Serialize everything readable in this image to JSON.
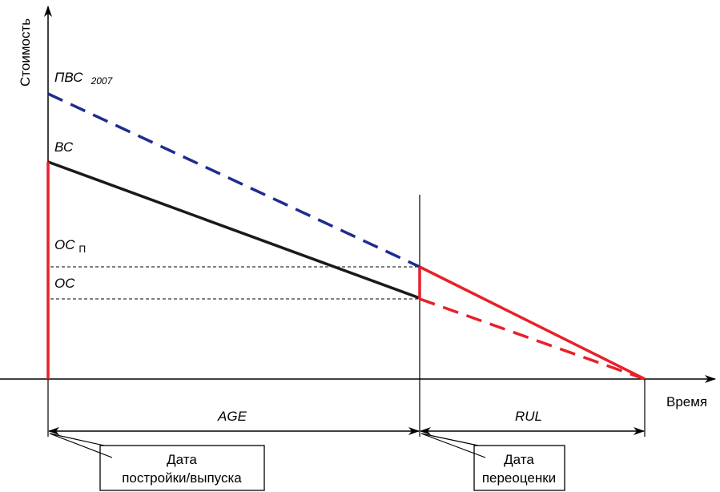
{
  "axes": {
    "y_label": "Стоимость",
    "x_label": "Время"
  },
  "labels": {
    "pvs_main": "ПВС",
    "pvs_sub": "2007",
    "vs": "ВС",
    "osp_main": "ОС",
    "osp_sub": "П",
    "os": "ОС"
  },
  "spans": {
    "age": "AGE",
    "rul": "RUL"
  },
  "callouts": {
    "build_date_line1": "Дата",
    "build_date_line2": "постройки/выпуска",
    "reval_date_line1": "Дата",
    "reval_date_line2": "переоценки"
  },
  "colors": {
    "red": "#e8202a",
    "blue": "#1f2c8f",
    "black": "#1a1a1a"
  }
}
